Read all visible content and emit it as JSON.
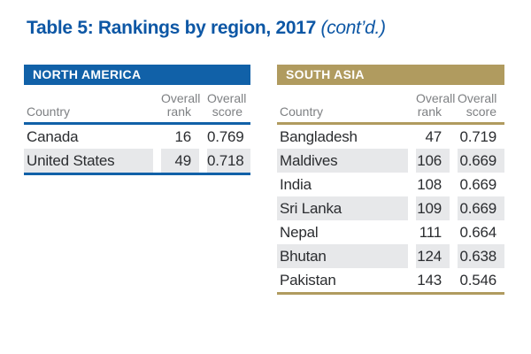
{
  "title": {
    "main": "Table 5: Rankings by region, 2017",
    "suffix": " (cont’d.)"
  },
  "colors": {
    "title_blue": "#0D57A5",
    "north_america_accent": "#1161A8",
    "south_asia_accent": "#B09B5F",
    "alt_row_gray": "#E7E8EA",
    "column_header_gray": "#7E8083",
    "data_text": "#2B2D30"
  },
  "tables": {
    "north_america": {
      "region_label": "NORTH AMERICA",
      "columns": {
        "country": "Country",
        "rank_top": "Overall",
        "rank_bottom": "rank",
        "score_top": "Overall",
        "score_bottom": "score"
      },
      "rows": [
        {
          "country": "Canada",
          "rank": "16",
          "score": "0.769"
        },
        {
          "country": "United States",
          "rank": "49",
          "score": "0.718"
        }
      ]
    },
    "south_asia": {
      "region_label": "SOUTH ASIA",
      "columns": {
        "country": "Country",
        "rank_top": "Overall",
        "rank_bottom": "rank",
        "score_top": "Overall",
        "score_bottom": "score"
      },
      "rows": [
        {
          "country": "Bangladesh",
          "rank": "47",
          "score": "0.719"
        },
        {
          "country": "Maldives",
          "rank": "106",
          "score": "0.669"
        },
        {
          "country": "India",
          "rank": "108",
          "score": "0.669"
        },
        {
          "country": "Sri Lanka",
          "rank": "109",
          "score": "0.669"
        },
        {
          "country": "Nepal",
          "rank": "111",
          "score": "0.664"
        },
        {
          "country": "Bhutan",
          "rank": "124",
          "score": "0.638"
        },
        {
          "country": "Pakistan",
          "rank": "143",
          "score": "0.546"
        }
      ]
    }
  }
}
